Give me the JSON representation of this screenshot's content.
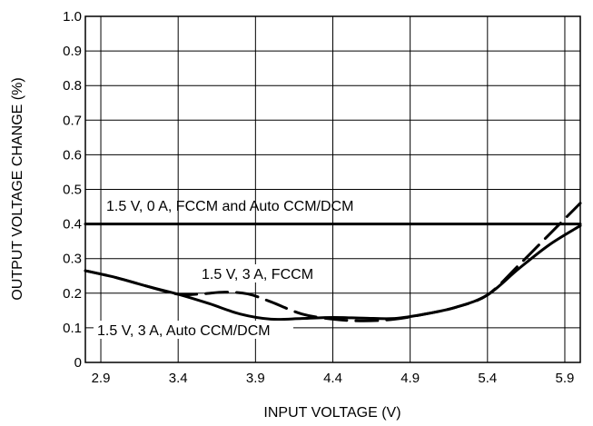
{
  "chart_data": {
    "type": "line",
    "title": "",
    "xlabel": "INPUT VOLTAGE (V)",
    "ylabel": "OUTPUT VOLTAGE CHANGE (%)",
    "xlim": [
      2.8,
      6.0
    ],
    "ylim": [
      0,
      1.0
    ],
    "grid": true,
    "x_ticks": [
      2.9,
      3.4,
      3.9,
      4.4,
      4.9,
      5.4,
      5.9
    ],
    "x_tick_labels": [
      "2.9",
      "3.4",
      "3.9",
      "4.4",
      "4.9",
      "5.4",
      "5.9"
    ],
    "y_ticks": [
      0,
      0.1,
      0.2,
      0.3,
      0.4,
      0.5,
      0.6,
      0.7,
      0.8,
      0.9,
      1.0
    ],
    "y_tick_labels": [
      "0",
      "0.1",
      "0.2",
      "0.3",
      "0.4",
      "0.5",
      "0.6",
      "0.7",
      "0.8",
      "0.9",
      "1.0"
    ],
    "series": [
      {
        "label": "1.5 V, 0 A, FCCM and Auto CCM/DCM",
        "style": "solid",
        "x": [
          2.8,
          6.0
        ],
        "y": [
          0.4,
          0.4
        ]
      },
      {
        "label": "1.5 V, 3 A, FCCM",
        "style": "dashed",
        "x": [
          2.8,
          3.0,
          3.2,
          3.4,
          3.55,
          3.7,
          3.85,
          4.0,
          4.2,
          4.4,
          4.6,
          4.8,
          5.0,
          5.2,
          5.4,
          5.6,
          5.8,
          6.0
        ],
        "y": [
          0.265,
          0.245,
          0.22,
          0.197,
          0.198,
          0.203,
          0.198,
          0.175,
          0.14,
          0.125,
          0.12,
          0.125,
          0.14,
          0.16,
          0.195,
          0.28,
          0.37,
          0.46
        ]
      },
      {
        "label": "1.5 V, 3 A, Auto CCM/DCM",
        "style": "solid",
        "x": [
          2.8,
          3.0,
          3.2,
          3.4,
          3.6,
          3.8,
          4.0,
          4.2,
          4.4,
          4.6,
          4.8,
          5.0,
          5.2,
          5.4,
          5.6,
          5.8,
          6.0
        ],
        "y": [
          0.265,
          0.245,
          0.22,
          0.197,
          0.17,
          0.14,
          0.125,
          0.127,
          0.13,
          0.128,
          0.127,
          0.14,
          0.16,
          0.195,
          0.27,
          0.34,
          0.395
        ]
      }
    ]
  }
}
